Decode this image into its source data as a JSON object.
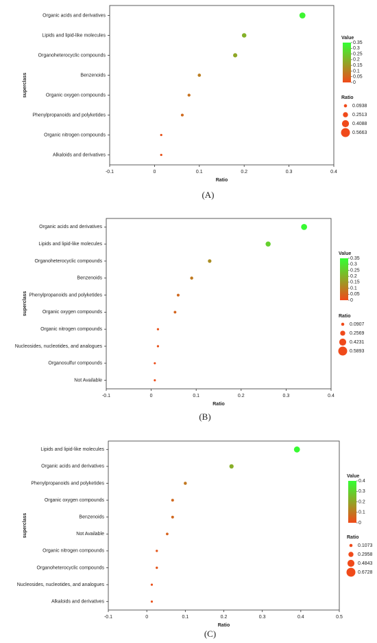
{
  "chart_data": [
    {
      "type": "scatter",
      "panel_label": "(A)",
      "x_label": "Ratio",
      "y_label": "superclass",
      "categories": [
        "Organic acids and derivatives",
        "Lipids and lipid-like molecules",
        "Organoheterocyclic compounds",
        "Benzenoids",
        "Organic oxygen compounds",
        "Phenylpropanoids and polyketides",
        "Organic nitrogen compounds",
        "Alkaloids and derivatives"
      ],
      "values": [
        0.33,
        0.2,
        0.18,
        0.1,
        0.077,
        0.062,
        0.015,
        0.015
      ],
      "xlim": [
        -0.1,
        0.4
      ],
      "xticks": [
        -0.1,
        0,
        0.1,
        0.2,
        0.3,
        0.4
      ],
      "colorbar": {
        "title": "Value",
        "colors": [
          "#f04a1a",
          "#33ff33"
        ],
        "lim": [
          0,
          0.35
        ],
        "ticks": [
          0,
          0.05,
          0.1,
          0.15,
          0.2,
          0.25,
          0.3,
          0.35
        ]
      },
      "size_legend": {
        "title": "Ratio",
        "values": [
          0.0938,
          0.2513,
          0.4088,
          0.5663
        ]
      }
    },
    {
      "type": "scatter",
      "panel_label": "(B)",
      "x_label": "Ratio",
      "y_label": "superclass",
      "categories": [
        "Organic acids and derivatives",
        "Lipids and lipid-like molecules",
        "Organoheterocyclic compounds",
        "Benzenoids",
        "Phenylpropanoids and polyketides",
        "Organic oxygen compounds",
        "Organic nitrogen compounds",
        "Nucleosides, nucleotides, and analogues",
        "Organosulfur compounds",
        "Not Available"
      ],
      "values": [
        0.34,
        0.26,
        0.13,
        0.09,
        0.06,
        0.053,
        0.015,
        0.015,
        0.008,
        0.008
      ],
      "xlim": [
        -0.1,
        0.4
      ],
      "xticks": [
        -0.1,
        0,
        0.1,
        0.2,
        0.3,
        0.4
      ],
      "colorbar": {
        "title": "Value",
        "colors": [
          "#f04a1a",
          "#33ff33"
        ],
        "lim": [
          0,
          0.35
        ],
        "ticks": [
          0,
          0.05,
          0.1,
          0.15,
          0.2,
          0.25,
          0.3,
          0.35
        ]
      },
      "size_legend": {
        "title": "Ratio",
        "values": [
          0.0907,
          0.2569,
          0.4231,
          0.5893
        ]
      }
    },
    {
      "type": "scatter",
      "panel_label": "(C)",
      "x_label": "Ratio",
      "y_label": "superclass",
      "categories": [
        "Lipids and lipid-like molecules",
        "Organic acids and derivatives",
        "Phenylpropanoids and polyketides",
        "Organic oxygen compounds",
        "Benzenoids",
        "Not Available",
        "Organic nitrogen compounds",
        "Organoheterocyclic compounds",
        "Nucleosides, nucleotides, and analogues",
        "Alkaloids and derivatives"
      ],
      "values": [
        0.39,
        0.22,
        0.1,
        0.067,
        0.067,
        0.053,
        0.026,
        0.026,
        0.013,
        0.013
      ],
      "xlim": [
        -0.1,
        0.5
      ],
      "xticks": [
        -0.1,
        0,
        0.1,
        0.2,
        0.3,
        0.4,
        0.5
      ],
      "colorbar": {
        "title": "Value",
        "colors": [
          "#f04a1a",
          "#33ff33"
        ],
        "lim": [
          0,
          0.4
        ],
        "ticks": [
          0,
          0.1,
          0.2,
          0.3,
          0.4
        ]
      },
      "size_legend": {
        "title": "Ratio",
        "values": [
          0.1073,
          0.2958,
          0.4843,
          0.6728
        ]
      }
    }
  ]
}
